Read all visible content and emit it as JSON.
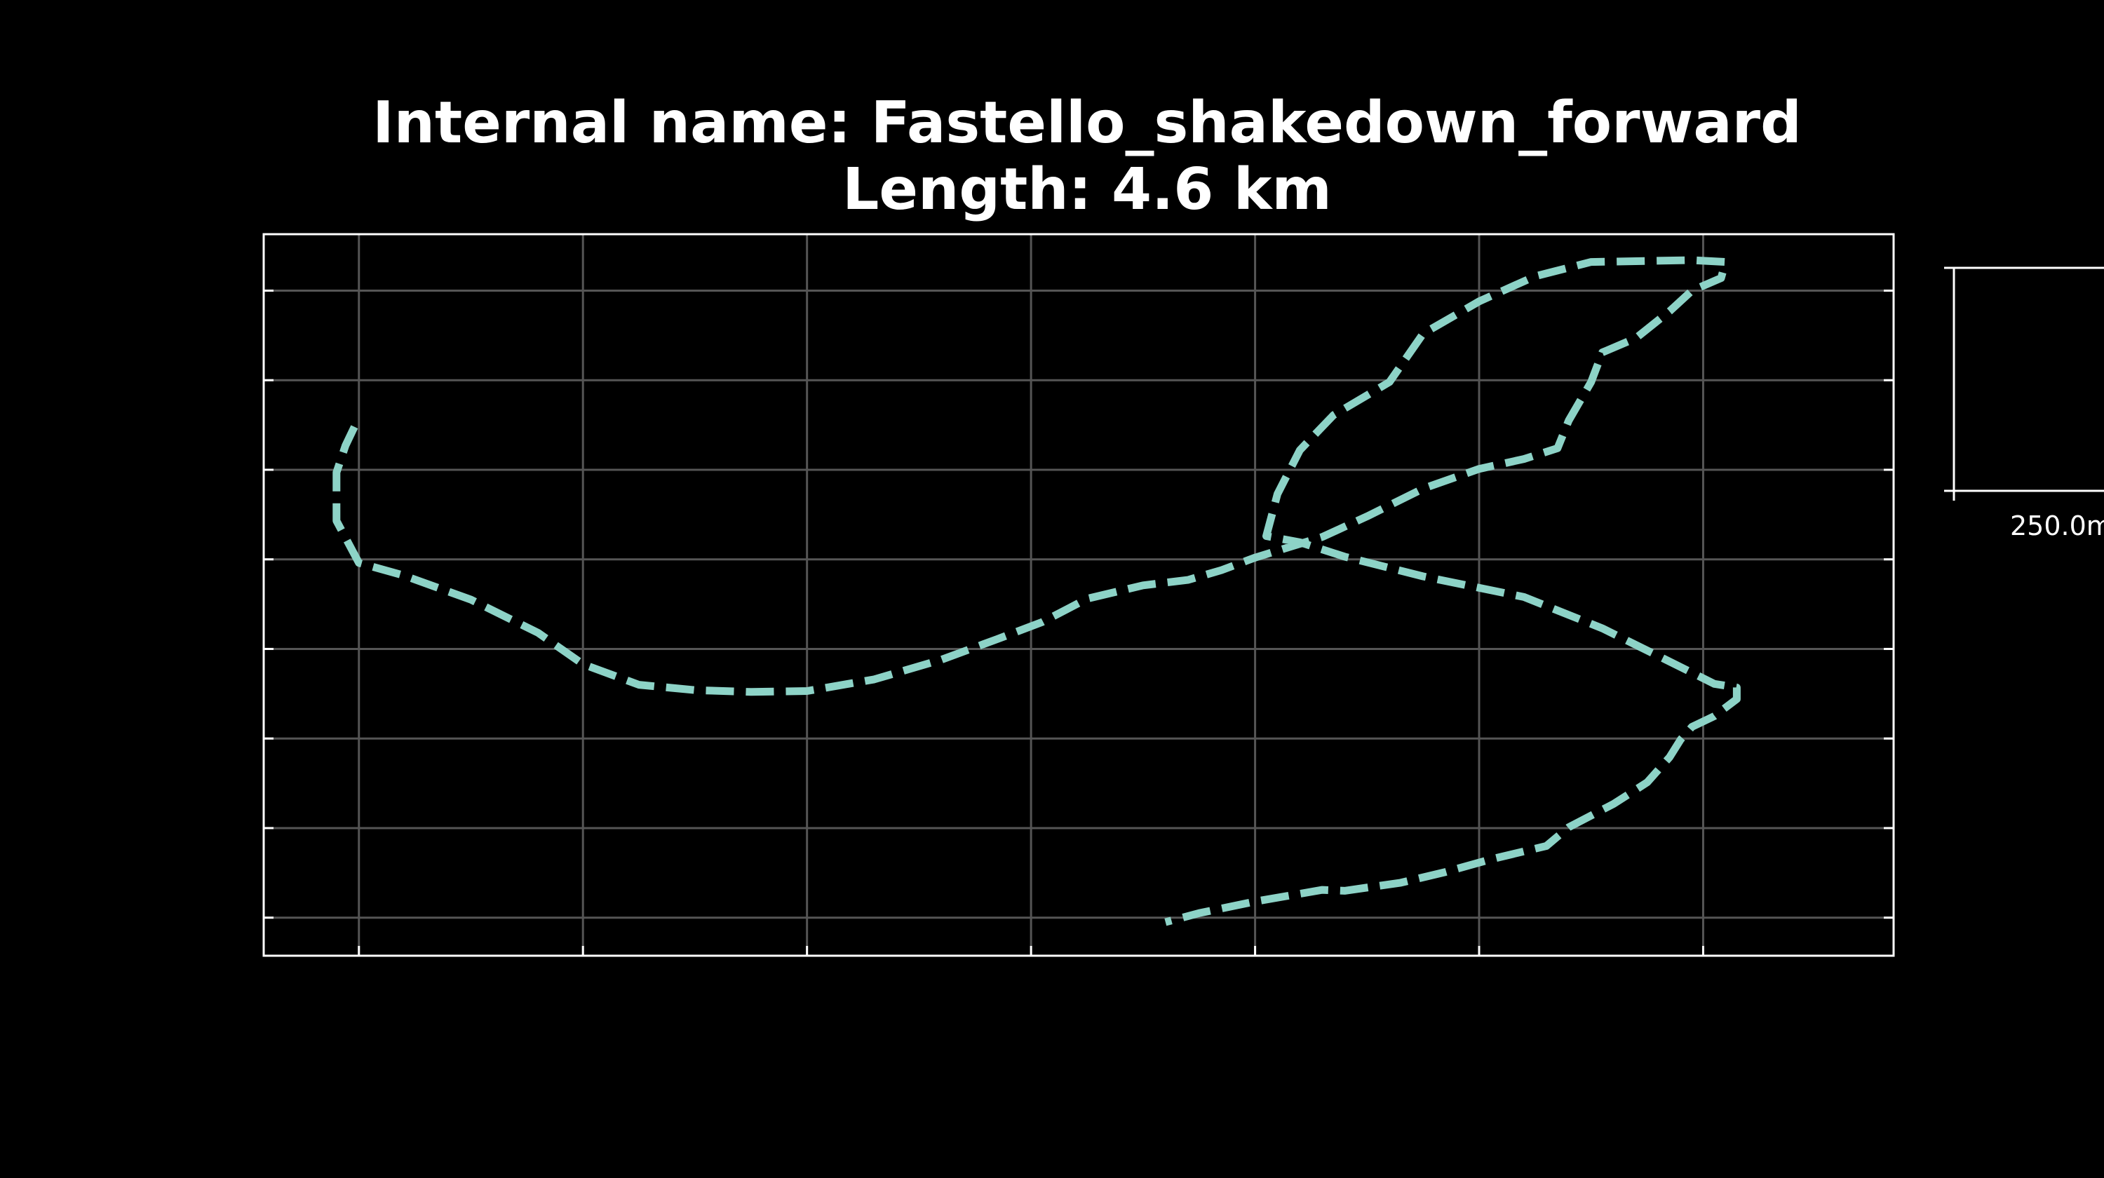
{
  "title": {
    "line1": "Internal name: Fastello_shakedown_forward",
    "line2": "Length: 4.6 km"
  },
  "scalebar": {
    "label": "250.0m"
  },
  "colors": {
    "background": "#000000",
    "track": "#8dd3c7",
    "grid": "#555555",
    "axes": "#ffffff",
    "text": "#ffffff"
  },
  "chart_data": {
    "type": "line",
    "title": "Internal name: Fastello_shakedown_forward\nLength: 4.6 km",
    "xlabel": "",
    "ylabel": "",
    "grid": true,
    "line_style": "dashed",
    "xlim": [
      -0.425,
      6.85
    ],
    "ylim": [
      -0.425,
      7.63
    ],
    "series": [
      {
        "x": [
          -0.02,
          -0.06,
          -0.1,
          -0.1,
          0.0,
          0.2,
          0.5,
          0.8,
          1.0,
          1.25,
          1.5,
          1.75,
          2.0,
          2.3,
          2.6,
          2.85,
          3.05,
          3.25,
          3.5,
          3.7,
          3.85,
          4.0,
          4.3,
          4.5,
          4.75,
          5.0,
          5.2,
          5.35,
          5.4,
          5.5,
          5.55,
          5.7,
          5.85,
          5.95,
          6.08,
          6.1,
          5.95,
          5.5,
          5.25,
          5.0,
          4.75,
          4.6,
          4.35,
          4.2,
          4.1,
          4.05,
          4.2,
          4.4,
          4.75,
          5.2,
          5.55,
          5.85,
          6.05,
          6.15,
          6.15,
          6.05,
          5.95,
          5.9,
          5.85,
          5.75,
          5.6,
          5.4,
          5.3,
          5.05,
          4.85,
          4.65,
          4.4,
          4.3,
          4.0,
          3.75,
          3.6
        ],
        "y": [
          5.48,
          5.27,
          4.97,
          4.43,
          3.96,
          3.82,
          3.55,
          3.18,
          2.83,
          2.6,
          2.54,
          2.52,
          2.53,
          2.66,
          2.88,
          3.11,
          3.3,
          3.56,
          3.71,
          3.77,
          3.88,
          4.02,
          4.25,
          4.48,
          4.79,
          5.01,
          5.12,
          5.24,
          5.55,
          5.98,
          6.31,
          6.47,
          6.77,
          7.0,
          7.14,
          7.32,
          7.34,
          7.32,
          7.16,
          6.88,
          6.52,
          5.98,
          5.61,
          5.22,
          4.73,
          4.26,
          4.19,
          4.03,
          3.81,
          3.58,
          3.23,
          2.86,
          2.61,
          2.57,
          2.44,
          2.25,
          2.13,
          1.99,
          1.79,
          1.51,
          1.27,
          1.01,
          0.8,
          0.65,
          0.51,
          0.39,
          0.3,
          0.31,
          0.18,
          0.05,
          -0.05
        ]
      }
    ],
    "scalebar": "250.0m"
  }
}
